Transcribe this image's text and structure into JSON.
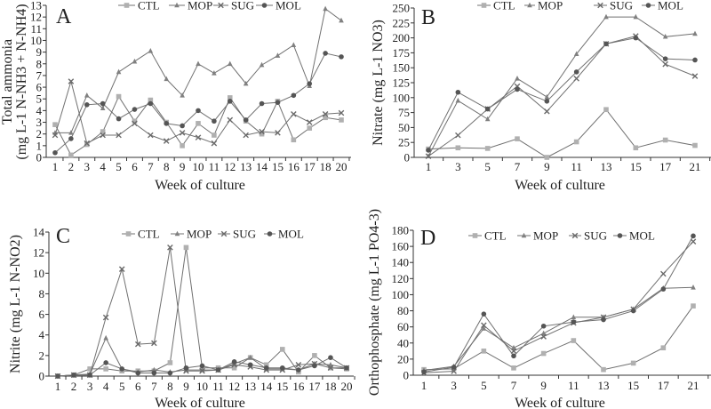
{
  "colors": {
    "CTL": "#b0b0b0",
    "MOP": "#808080",
    "SUG": "#6a6a6a",
    "MOL": "#555555",
    "axis": "#333333"
  },
  "markers": {
    "CTL": "square",
    "MOP": "triangle",
    "SUG": "x",
    "MOL": "circle"
  },
  "chart_data": [
    {
      "panel": "A",
      "type": "line",
      "xlabel": "Week of culture",
      "ylabel": [
        "Total ammonia",
        "(mg L-1 N-NH3 + N-NH4)"
      ],
      "ylim": [
        0,
        13
      ],
      "yticks": [
        0,
        1,
        2,
        3,
        4,
        5,
        6,
        7,
        8,
        9,
        10,
        11,
        12,
        13
      ],
      "categories": [
        "1",
        "2",
        "3",
        "4",
        "5",
        "6",
        "7",
        "8",
        "9",
        "10",
        "11",
        "12",
        "13",
        "14",
        "15",
        "16",
        "17",
        "18",
        "20"
      ],
      "legend": "top",
      "series": [
        {
          "name": "CTL",
          "values": [
            2.8,
            0.2,
            1.1,
            2.2,
            5.2,
            3.1,
            4.9,
            3.0,
            1.0,
            2.9,
            1.9,
            5.1,
            3.1,
            2.0,
            4.8,
            1.5,
            2.5,
            3.4,
            3.2
          ]
        },
        {
          "name": "MOP",
          "values": [
            2.1,
            2.1,
            5.3,
            4.2,
            7.3,
            8.2,
            9.1,
            6.7,
            5.3,
            8.0,
            7.2,
            8.0,
            6.3,
            7.9,
            8.7,
            9.6,
            6.1,
            12.7,
            11.7
          ]
        },
        {
          "name": "SUG",
          "values": [
            1.9,
            6.5,
            1.2,
            1.9,
            1.9,
            2.9,
            1.9,
            1.4,
            2.1,
            1.7,
            1.2,
            3.2,
            1.9,
            2.2,
            2.1,
            3.7,
            3.0,
            3.7,
            3.8
          ]
        },
        {
          "name": "MOL",
          "values": [
            0.4,
            1.6,
            4.5,
            4.6,
            3.3,
            4.1,
            4.6,
            2.9,
            2.7,
            4.0,
            3.1,
            4.8,
            3.2,
            4.6,
            4.7,
            5.3,
            6.3,
            8.9,
            8.6
          ]
        }
      ]
    },
    {
      "panel": "B",
      "type": "line",
      "xlabel": "Week of culture",
      "ylabel": [
        "Nitrate  (mg L-1 NO3)"
      ],
      "ylim": [
        0,
        250
      ],
      "yticks": [
        0,
        25,
        50,
        75,
        100,
        125,
        150,
        175,
        200,
        225,
        250
      ],
      "categories": [
        "1",
        "3",
        "5",
        "7",
        "9",
        "11",
        "13",
        "15",
        "17",
        "21"
      ],
      "legend": "top",
      "series": [
        {
          "name": "CTL",
          "values": [
            14,
            16,
            15,
            31,
            0,
            26,
            80,
            16,
            29,
            20
          ]
        },
        {
          "name": "MOP",
          "values": [
            2,
            95,
            64,
            132,
            101,
            173,
            235,
            235,
            202,
            207
          ]
        },
        {
          "name": "SUG",
          "values": [
            2,
            37,
            81,
            119,
            77,
            132,
            190,
            203,
            156,
            136
          ]
        },
        {
          "name": "MOL",
          "values": [
            12,
            109,
            81,
            114,
            94,
            143,
            190,
            200,
            165,
            163
          ]
        }
      ]
    },
    {
      "panel": "C",
      "type": "line",
      "xlabel": "Week of culture",
      "ylabel": [
        "Nitrite (mg L-1 N-NO2)"
      ],
      "ylim": [
        0,
        14
      ],
      "yticks": [
        0,
        2,
        4,
        6,
        8,
        10,
        12,
        14
      ],
      "categories": [
        "1",
        "2",
        "3",
        "4",
        "5",
        "6",
        "7",
        "8",
        "9",
        "10",
        "11",
        "12",
        "13",
        "14",
        "15",
        "16",
        "17",
        "18",
        "20"
      ],
      "legend": "top",
      "series": [
        {
          "name": "CTL",
          "values": [
            0,
            0.1,
            0.7,
            0.7,
            0.5,
            0.5,
            0.5,
            1.3,
            12.5,
            0.8,
            0.8,
            0.8,
            1.8,
            1.1,
            2.6,
            0.4,
            2.0,
            0.8,
            0.7
          ]
        },
        {
          "name": "MOP",
          "values": [
            0,
            0.1,
            0.2,
            3.7,
            0.7,
            0.4,
            0.6,
            0.4,
            0.6,
            0.6,
            0.6,
            1.2,
            1.8,
            0.7,
            0.7,
            0.6,
            1.2,
            1.1,
            0.8
          ]
        },
        {
          "name": "SUG",
          "values": [
            0,
            0.1,
            0.1,
            5.7,
            10.4,
            3.1,
            3.2,
            12.5,
            0.5,
            0.5,
            0.6,
            1.1,
            0.9,
            0.6,
            0.6,
            1.1,
            1.2,
            0.8,
            0.8
          ]
        },
        {
          "name": "MOL",
          "values": [
            0,
            0.1,
            0.1,
            1.3,
            0.7,
            0.3,
            0.3,
            0.3,
            0.8,
            1.0,
            0.6,
            1.4,
            1.1,
            0.8,
            0.8,
            0.6,
            1.0,
            1.8,
            0.8
          ]
        }
      ]
    },
    {
      "panel": "D",
      "type": "line",
      "xlabel": "Week of culture",
      "ylabel": [
        "Orthophosphate (mg L-1 PO4-3)"
      ],
      "ylim": [
        0,
        180
      ],
      "yticks": [
        0,
        20,
        40,
        60,
        80,
        100,
        120,
        140,
        160,
        180
      ],
      "categories": [
        "1",
        "3",
        "5",
        "7",
        "9",
        "11",
        "13",
        "15",
        "17",
        "21"
      ],
      "legend": "top",
      "series": [
        {
          "name": "CTL",
          "values": [
            7,
            8,
            30,
            9,
            27,
            43,
            7,
            15,
            34,
            86
          ]
        },
        {
          "name": "MOP",
          "values": [
            6,
            11,
            58,
            34,
            52,
            72,
            72,
            82,
            108,
            109
          ]
        },
        {
          "name": "SUG",
          "values": [
            3,
            5,
            62,
            30,
            48,
            65,
            72,
            82,
            126,
            166
          ]
        },
        {
          "name": "MOL",
          "values": [
            4,
            10,
            76,
            24,
            61,
            66,
            69,
            80,
            107,
            173
          ]
        }
      ]
    }
  ]
}
